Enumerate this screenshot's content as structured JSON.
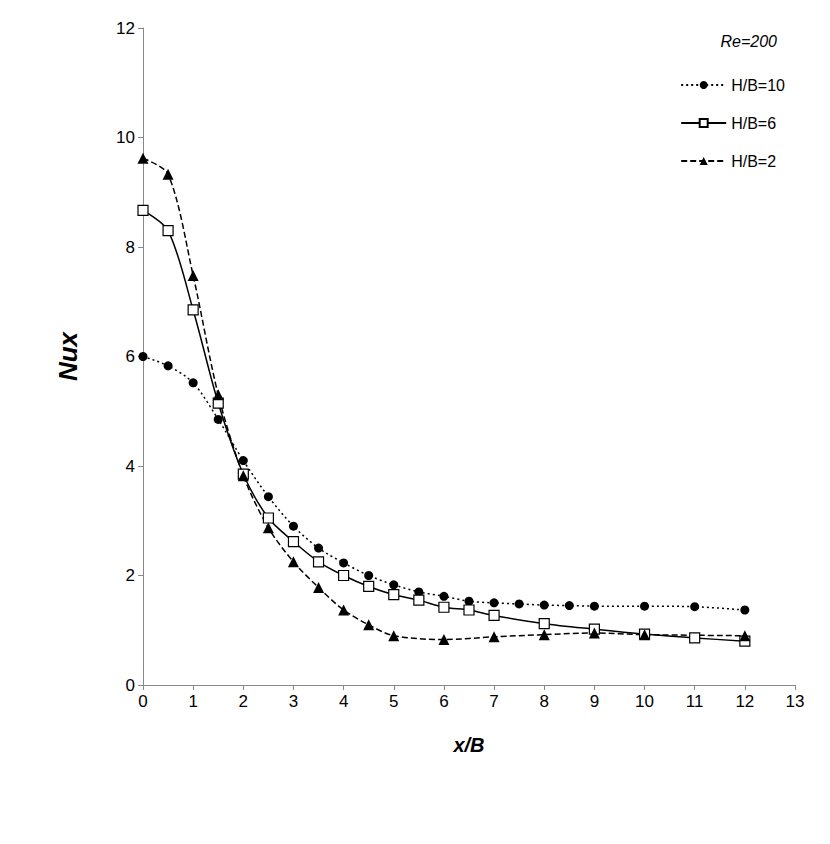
{
  "chart_data": {
    "type": "line",
    "xlabel": "x/B",
    "ylabel": "Nux",
    "annotations": [
      "Re=200"
    ],
    "xlim": [
      0,
      13
    ],
    "xticks": [
      0,
      1,
      2,
      3,
      4,
      5,
      6,
      7,
      8,
      9,
      10,
      11,
      12,
      13
    ],
    "ylim": [
      0,
      12
    ],
    "yticks": [
      0,
      2,
      4,
      6,
      8,
      10,
      12
    ],
    "grid": false,
    "legend": "upper right",
    "series": [
      {
        "name": "H/B=10",
        "color": "#000000",
        "marker": "circle",
        "line_style": "dotted",
        "x": [
          0,
          0.5,
          1,
          1.5,
          2,
          2.5,
          3,
          3.5,
          4,
          4.5,
          5,
          5.5,
          6,
          6.5,
          7,
          7.5,
          8,
          8.5,
          9,
          10,
          11,
          12
        ],
        "values": [
          6.0,
          5.83,
          5.52,
          4.85,
          4.1,
          3.44,
          2.9,
          2.5,
          2.23,
          2.0,
          1.83,
          1.7,
          1.62,
          1.53,
          1.5,
          1.48,
          1.46,
          1.45,
          1.44,
          1.44,
          1.43,
          1.37
        ]
      },
      {
        "name": "H/B=6",
        "color": "#000000",
        "marker": "open_square",
        "line_style": "solid",
        "x": [
          0,
          0.5,
          1,
          1.5,
          2,
          2.5,
          3,
          3.5,
          4,
          4.5,
          5,
          5.5,
          6,
          6.5,
          7,
          8,
          9,
          10,
          11,
          12
        ],
        "values": [
          8.67,
          8.3,
          6.85,
          5.15,
          3.85,
          3.05,
          2.62,
          2.25,
          2.0,
          1.8,
          1.65,
          1.55,
          1.42,
          1.37,
          1.27,
          1.12,
          1.02,
          0.93,
          0.86,
          0.8
        ]
      },
      {
        "name": "H/B=2",
        "color": "#000000",
        "marker": "triangle",
        "line_style": "dashed",
        "x": [
          0,
          0.5,
          1,
          1.5,
          2,
          2.5,
          3,
          3.5,
          4,
          4.5,
          5,
          6,
          7,
          8,
          9,
          10,
          12
        ],
        "values": [
          9.62,
          9.33,
          7.48,
          5.3,
          3.82,
          2.87,
          2.25,
          1.78,
          1.37,
          1.1,
          0.9,
          0.83,
          0.88,
          0.92,
          0.95,
          0.92,
          0.9
        ]
      }
    ]
  }
}
